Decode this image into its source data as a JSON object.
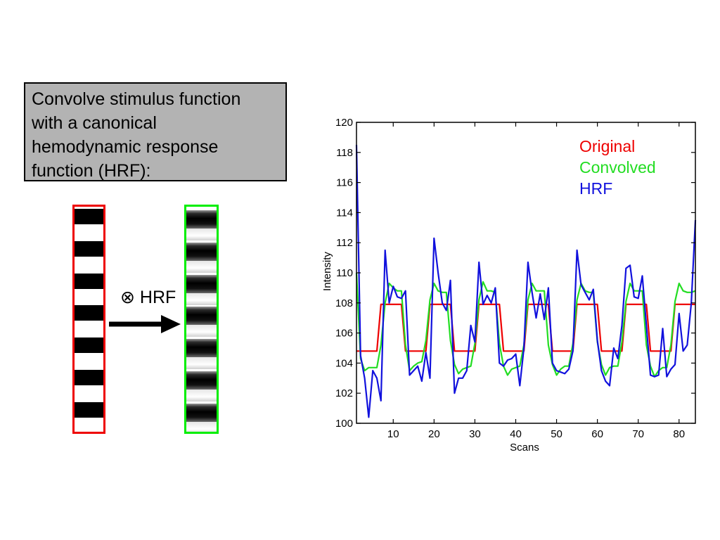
{
  "caption": {
    "lines": [
      "Convolve stimulus function",
      "with a canonical",
      "hemodynamic response",
      "function (HRF):"
    ]
  },
  "operation_label": "⊗ HRF",
  "stimulus": {
    "original_border_color": "#ee0000",
    "convolved_border_color": "#00ee00",
    "blocks": 7,
    "arrow_icon": "right-arrow"
  },
  "chart_data": {
    "type": "line",
    "title": "",
    "xlabel": "Scans",
    "ylabel": "Intensity",
    "xlim": [
      1,
      84
    ],
    "ylim": [
      100,
      120
    ],
    "xticks": [
      10,
      20,
      30,
      40,
      50,
      60,
      70,
      80
    ],
    "yticks": [
      100,
      102,
      104,
      106,
      108,
      110,
      112,
      114,
      116,
      118,
      120
    ],
    "legend": {
      "placement": "top-right",
      "entries": [
        "Original",
        "Convolved",
        "HRF"
      ]
    },
    "series": [
      {
        "name": "Original",
        "color": "#ee0000",
        "x": [
          1,
          6,
          7,
          12,
          13,
          18,
          19,
          24,
          25,
          30,
          31,
          36,
          37,
          42,
          43,
          48,
          49,
          54,
          55,
          60,
          61,
          66,
          67,
          72,
          73,
          78,
          79,
          84
        ],
        "values": [
          104.8,
          104.8,
          107.9,
          107.9,
          104.8,
          104.8,
          107.9,
          107.9,
          104.8,
          104.8,
          107.9,
          107.9,
          104.8,
          104.8,
          107.9,
          107.9,
          104.8,
          104.8,
          107.9,
          107.9,
          104.8,
          104.8,
          107.9,
          107.9,
          104.8,
          104.8,
          107.9,
          107.9
        ]
      },
      {
        "name": "Convolved",
        "color": "#22dd22",
        "x": [
          1,
          2,
          3,
          4,
          5,
          6,
          7,
          8,
          9,
          10,
          11,
          12,
          13,
          14,
          15,
          16,
          17,
          18,
          19,
          20,
          21,
          22,
          23,
          24,
          25,
          26,
          27,
          28,
          29,
          30,
          31,
          32,
          33,
          34,
          35,
          36,
          37,
          38,
          39,
          40,
          41,
          42,
          43,
          44,
          45,
          46,
          47,
          48,
          49,
          50,
          51,
          52,
          53,
          54,
          55,
          56,
          57,
          58,
          59,
          60,
          61,
          62,
          63,
          64,
          65,
          66,
          67,
          68,
          69,
          70,
          71,
          72,
          73,
          74,
          75,
          76,
          77,
          78,
          79,
          80,
          81,
          82,
          83,
          84
        ],
        "values": [
          110,
          104.3,
          103.5,
          103.7,
          103.7,
          103.7,
          105.2,
          108,
          109.3,
          109,
          108.8,
          108.8,
          105.2,
          103.5,
          103.8,
          104,
          104.1,
          105.5,
          108.2,
          109.3,
          108.8,
          108.7,
          108.7,
          105.5,
          103.9,
          103.3,
          103.6,
          103.7,
          103.8,
          105.3,
          108.2,
          109.4,
          108.8,
          108.8,
          108.7,
          105.3,
          103.8,
          103.2,
          103.6,
          103.7,
          103.8,
          105.2,
          108.2,
          109.3,
          108.8,
          108.8,
          108.8,
          105.2,
          103.9,
          103.2,
          103.6,
          103.8,
          103.8,
          105.3,
          108.2,
          109.3,
          108.8,
          108.7,
          108.7,
          105.4,
          103.9,
          103.2,
          103.7,
          103.8,
          103.8,
          105.4,
          108.1,
          109.3,
          108.8,
          108.8,
          108.8,
          105.2,
          103.8,
          103.1,
          103.5,
          103.7,
          103.7,
          105.2,
          108.1,
          109.3,
          108.8,
          108.7,
          108.7,
          108.8
        ]
      },
      {
        "name": "HRF",
        "color": "#1111dd",
        "x": [
          1,
          2,
          3,
          4,
          5,
          6,
          7,
          8,
          9,
          10,
          11,
          12,
          13,
          14,
          15,
          16,
          17,
          18,
          19,
          20,
          21,
          22,
          23,
          24,
          25,
          26,
          27,
          28,
          29,
          30,
          31,
          32,
          33,
          34,
          35,
          36,
          37,
          38,
          39,
          40,
          41,
          42,
          43,
          44,
          45,
          46,
          47,
          48,
          49,
          50,
          51,
          52,
          53,
          54,
          55,
          56,
          57,
          58,
          59,
          60,
          61,
          62,
          63,
          64,
          65,
          66,
          67,
          68,
          69,
          70,
          71,
          72,
          73,
          74,
          75,
          76,
          77,
          78,
          79,
          80,
          81,
          82,
          83,
          84
        ],
        "values": [
          118.5,
          104.5,
          103,
          100.4,
          103.5,
          103,
          101.5,
          111.5,
          108,
          109.1,
          108.4,
          108.3,
          108.8,
          103.2,
          103.5,
          103.8,
          102.8,
          104.7,
          103,
          112.3,
          110,
          108,
          107.5,
          109.5,
          102,
          103,
          103,
          103.5,
          106.5,
          105.4,
          110.7,
          107.9,
          108.5,
          108,
          109,
          104,
          103.8,
          104.2,
          104.3,
          104.6,
          102.5,
          105,
          110.7,
          108.7,
          107,
          108.6,
          106.9,
          109,
          104,
          103.5,
          103.4,
          103.3,
          103.6,
          104.8,
          111.5,
          109.2,
          108.7,
          108.2,
          108.9,
          105.5,
          103.5,
          102.8,
          102.5,
          105,
          104.3,
          106.5,
          110.3,
          110.5,
          108.4,
          108.3,
          109.8,
          106.5,
          103.2,
          103.1,
          103.2,
          106.3,
          103.1,
          103.6,
          103.9,
          107.3,
          104.8,
          105.2,
          108,
          113.5
        ]
      }
    ]
  }
}
